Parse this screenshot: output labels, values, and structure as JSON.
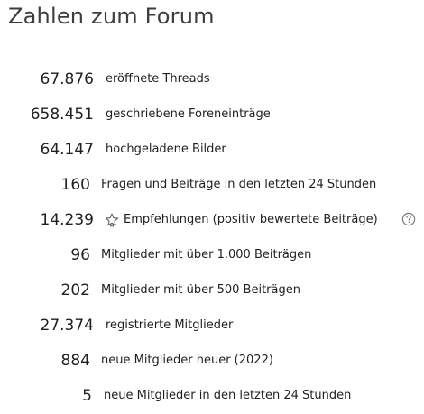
{
  "title": "Zahlen zum Forum",
  "stats": [
    {
      "value": "67.876",
      "label": "eröffnete Threads"
    },
    {
      "value": "658.451",
      "label": "geschriebene Foreneinträge"
    },
    {
      "value": "64.147",
      "label": "hochgeladene Bilder"
    },
    {
      "value": "160",
      "label": "Fragen und Beiträge in den letzten 24 Stunden"
    },
    {
      "value": "14.239",
      "label": "Empfehlungen (positiv bewertete Beiträge)",
      "icon": "star-badge-icon",
      "help_icon": "question-circle-icon"
    },
    {
      "value": "96",
      "label": "Mitglieder mit über 1.000 Beiträgen"
    },
    {
      "value": "202",
      "label": "Mitglieder mit über 500 Beiträgen"
    },
    {
      "value": "27.374",
      "label": "registrierte Mitglieder"
    },
    {
      "value": "884",
      "label": "neue Mitglieder heuer (2022)"
    },
    {
      "value": "5",
      "label": "neue Mitglieder in den letzten 24 Stunden"
    }
  ]
}
